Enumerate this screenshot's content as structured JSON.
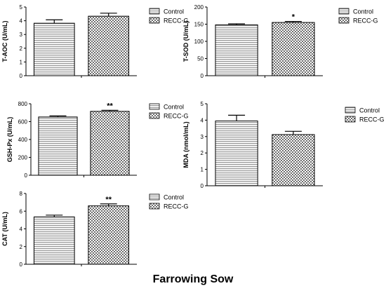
{
  "figure": {
    "caption": "Farrowing Sow",
    "pattern_fills": {
      "Control": "horizontal-stripes",
      "RECC-G": "checker"
    },
    "colors": {
      "ink": "#000000",
      "stripe": "#9a9a9a",
      "checker_dark": "#6e6e6e",
      "checker_light": "#ffffff"
    }
  },
  "chart_data": [
    {
      "type": "bar",
      "title": "",
      "ylabel": "T-AOC (U/mL)",
      "xlabel": "",
      "categories": [
        "Control",
        "RECC-G"
      ],
      "values": [
        3.82,
        4.33
      ],
      "errors": [
        0.25,
        0.22
      ],
      "significance": [
        "",
        ""
      ],
      "ylim": [
        0,
        5
      ],
      "yticks": [
        "0",
        "1",
        "2",
        "3",
        "4",
        "5"
      ],
      "legend": {
        "position": "top-right",
        "entries": [
          "Control",
          "RECC-G"
        ]
      },
      "grid": false
    },
    {
      "type": "bar",
      "title": "",
      "ylabel": "T-SOD (U/mL)",
      "xlabel": "",
      "categories": [
        "Control",
        "RECC-G"
      ],
      "values": [
        148,
        155
      ],
      "errors": [
        3,
        3
      ],
      "significance": [
        "",
        "*"
      ],
      "ylim": [
        0,
        200
      ],
      "yticks": [
        "0",
        "50",
        "100",
        "150",
        "200"
      ],
      "legend": {
        "position": "top-right",
        "entries": [
          "Control",
          "RECC-G"
        ]
      },
      "grid": false
    },
    {
      "type": "bar",
      "title": "",
      "ylabel": "GSH-Px (U/mL)",
      "xlabel": "",
      "categories": [
        "Control",
        "RECC-G"
      ],
      "values": [
        652,
        715
      ],
      "errors": [
        12,
        12
      ],
      "significance": [
        "",
        "**"
      ],
      "ylim": [
        0,
        800
      ],
      "yticks": [
        "0",
        "200",
        "400",
        "600",
        "800"
      ],
      "legend": {
        "position": "top-right",
        "entries": [
          "Control",
          "RECC-G"
        ]
      },
      "grid": false
    },
    {
      "type": "bar",
      "title": "",
      "ylabel": "MDA (nmol/mL)",
      "xlabel": "",
      "categories": [
        "Control",
        "RECC-G"
      ],
      "values": [
        3.95,
        3.12
      ],
      "errors": [
        0.35,
        0.2
      ],
      "significance": [
        "",
        ""
      ],
      "ylim": [
        0,
        5
      ],
      "yticks": [
        "0",
        "1",
        "2",
        "3",
        "4",
        "5"
      ],
      "legend": {
        "position": "top-right",
        "entries": [
          "Control",
          "RECC-G"
        ]
      },
      "grid": false
    },
    {
      "type": "bar",
      "title": "",
      "ylabel": "CAT (U/mL)",
      "xlabel": "",
      "categories": [
        "Control",
        "RECC-G"
      ],
      "values": [
        5.35,
        6.6
      ],
      "errors": [
        0.2,
        0.22
      ],
      "significance": [
        "",
        "**"
      ],
      "ylim": [
        0,
        8
      ],
      "yticks": [
        "0",
        "2",
        "4",
        "6",
        "8"
      ],
      "legend": {
        "position": "top-right",
        "entries": [
          "Control",
          "RECC-G"
        ]
      },
      "grid": false
    }
  ]
}
